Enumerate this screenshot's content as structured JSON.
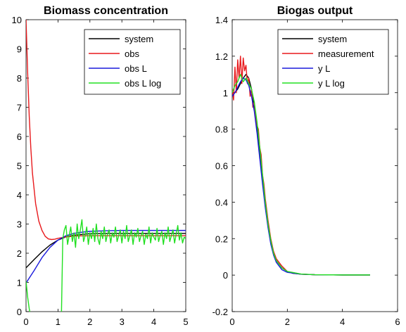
{
  "chart_data": [
    {
      "type": "line",
      "title": "Biomass concentration",
      "xlabel": "",
      "ylabel": "",
      "xlim": [
        0,
        5
      ],
      "ylim": [
        0,
        10
      ],
      "xticks": [
        0,
        1,
        2,
        3,
        4,
        5
      ],
      "yticks": [
        0,
        1,
        2,
        3,
        4,
        5,
        6,
        7,
        8,
        9,
        10
      ],
      "xtick_labels": [
        "0",
        "1",
        "2",
        "3",
        "4",
        "5"
      ],
      "ytick_labels": [
        "0",
        "1",
        "2",
        "3",
        "4",
        "5",
        "6",
        "7",
        "8",
        "9",
        "10"
      ],
      "grid": false,
      "legend_position": "top-right",
      "series": [
        {
          "name": "system",
          "color": "#000000",
          "x": [
            0,
            0.25,
            0.5,
            0.75,
            1.0,
            1.25,
            1.5,
            2.0,
            2.5,
            3.0,
            4.0,
            5.0
          ],
          "y": [
            1.5,
            1.78,
            2.05,
            2.28,
            2.45,
            2.56,
            2.62,
            2.67,
            2.68,
            2.68,
            2.68,
            2.68
          ]
        },
        {
          "name": "obs",
          "color": "#e8191c",
          "x": [
            0,
            0.05,
            0.1,
            0.15,
            0.2,
            0.3,
            0.4,
            0.5,
            0.6,
            0.7,
            0.8,
            0.9,
            1.0,
            1.2,
            1.5,
            2.0,
            3.0,
            4.0,
            5.0
          ],
          "y": [
            10.0,
            8.2,
            6.7,
            5.6,
            4.75,
            3.7,
            3.1,
            2.78,
            2.58,
            2.49,
            2.47,
            2.48,
            2.51,
            2.55,
            2.59,
            2.6,
            2.6,
            2.6,
            2.6
          ]
        },
        {
          "name": "obs L",
          "color": "#1a1adc",
          "x": [
            0,
            0.25,
            0.5,
            0.75,
            1.0,
            1.25,
            1.5,
            1.75,
            2.0,
            2.5,
            3.0,
            4.0,
            5.0
          ],
          "y": [
            0.98,
            1.4,
            1.85,
            2.2,
            2.45,
            2.6,
            2.68,
            2.72,
            2.75,
            2.77,
            2.78,
            2.78,
            2.78
          ]
        },
        {
          "name": "obs L log",
          "color": "#22e022",
          "x": [
            0,
            0.05,
            0.1,
            0.15,
            1.1,
            1.11,
            1.15,
            1.2,
            1.25,
            1.3,
            1.35,
            1.4,
            1.45,
            1.5,
            1.55,
            1.6,
            1.65,
            1.7,
            1.75,
            1.8,
            1.85,
            1.9,
            1.95,
            2.0,
            2.05,
            2.1,
            2.15,
            2.2,
            2.25,
            2.3,
            2.35,
            2.4,
            2.45,
            2.5,
            2.55,
            2.6,
            2.65,
            2.7,
            2.75,
            2.8,
            2.85,
            2.9,
            2.95,
            3.0,
            3.05,
            3.1,
            3.15,
            3.2,
            3.25,
            3.3,
            3.35,
            3.4,
            3.45,
            3.5,
            3.55,
            3.6,
            3.65,
            3.7,
            3.75,
            3.8,
            3.85,
            3.9,
            3.95,
            4.0,
            4.05,
            4.1,
            4.15,
            4.2,
            4.25,
            4.3,
            4.35,
            4.4,
            4.45,
            4.5,
            4.55,
            4.6,
            4.65,
            4.7,
            4.75,
            4.8,
            4.85,
            4.9,
            4.95,
            5.0
          ],
          "y": [
            1.05,
            0.5,
            0.1,
            -0.2,
            -0.2,
            0.0,
            2.5,
            2.8,
            2.95,
            2.3,
            2.6,
            2.9,
            2.4,
            2.7,
            2.2,
            3.0,
            2.5,
            2.8,
            3.15,
            2.4,
            2.6,
            2.9,
            2.3,
            2.7,
            2.5,
            2.85,
            2.4,
            3.0,
            2.5,
            2.3,
            2.75,
            2.5,
            2.9,
            2.4,
            2.65,
            2.8,
            2.35,
            2.7,
            2.55,
            2.9,
            2.4,
            2.6,
            2.8,
            2.35,
            2.75,
            2.5,
            2.95,
            2.4,
            2.6,
            2.8,
            2.3,
            2.7,
            2.55,
            2.85,
            2.4,
            2.6,
            2.75,
            2.3,
            2.65,
            2.5,
            2.9,
            2.35,
            2.7,
            2.55,
            2.45,
            2.85,
            2.4,
            2.6,
            2.75,
            2.3,
            2.7,
            2.5,
            2.9,
            2.4,
            2.6,
            2.8,
            2.35,
            2.65,
            2.95,
            2.45,
            2.7,
            2.35,
            2.55,
            2.5
          ]
        }
      ]
    },
    {
      "type": "line",
      "title": "Biogas output",
      "xlabel": "",
      "ylabel": "",
      "xlim": [
        0,
        6
      ],
      "ylim": [
        -0.2,
        1.4
      ],
      "xticks": [
        0,
        2,
        4,
        6
      ],
      "yticks": [
        -0.2,
        0,
        0.2,
        0.4,
        0.6,
        0.8,
        1,
        1.2,
        1.4
      ],
      "xtick_labels": [
        "0",
        "2",
        "4",
        "6"
      ],
      "ytick_labels": [
        "-0.2",
        "0",
        "0.2",
        "0.4",
        "0.6",
        "0.8",
        "1",
        "1.2",
        "1.4"
      ],
      "grid": false,
      "legend_position": "top-right",
      "series": [
        {
          "name": "system",
          "color": "#000000",
          "x": [
            0,
            0.1,
            0.2,
            0.3,
            0.4,
            0.5,
            0.6,
            0.7,
            0.8,
            0.9,
            1.0,
            1.1,
            1.2,
            1.3,
            1.4,
            1.5,
            1.6,
            1.8,
            2.0,
            2.2,
            2.5,
            3.0,
            4.0,
            5.0
          ],
          "y": [
            1.0,
            1.0,
            1.02,
            1.05,
            1.08,
            1.1,
            1.08,
            1.02,
            0.92,
            0.8,
            0.66,
            0.52,
            0.38,
            0.27,
            0.18,
            0.12,
            0.08,
            0.04,
            0.02,
            0.01,
            0.005,
            0.002,
            0.001,
            0.001
          ]
        },
        {
          "name": "measurement",
          "color": "#e8191c",
          "x": [
            0,
            0.05,
            0.1,
            0.15,
            0.2,
            0.25,
            0.3,
            0.35,
            0.4,
            0.45,
            0.5,
            0.55,
            0.6,
            0.65,
            0.7,
            0.75,
            0.8,
            0.85,
            0.9,
            0.95,
            1.0,
            1.05,
            1.1,
            1.15,
            1.2,
            1.3,
            1.4,
            1.5,
            1.6,
            1.8,
            2.0,
            2.5,
            3.0,
            4.0,
            5.0
          ],
          "y": [
            1.02,
            0.96,
            1.14,
            1.0,
            1.18,
            1.08,
            1.2,
            1.05,
            1.19,
            1.12,
            1.15,
            1.05,
            1.08,
            0.98,
            1.02,
            0.92,
            0.95,
            0.86,
            0.82,
            0.8,
            0.7,
            0.66,
            0.55,
            0.5,
            0.42,
            0.3,
            0.2,
            0.13,
            0.09,
            0.05,
            0.02,
            0.005,
            0.002,
            0.001,
            0.001
          ]
        },
        {
          "name": "y L",
          "color": "#1a1adc",
          "x": [
            0,
            0.1,
            0.2,
            0.3,
            0.4,
            0.5,
            0.6,
            0.7,
            0.8,
            0.9,
            1.0,
            1.1,
            1.2,
            1.3,
            1.4,
            1.5,
            1.6,
            1.8,
            2.0,
            2.5,
            3.0,
            4.0,
            5.0
          ],
          "y": [
            0.98,
            1.0,
            1.03,
            1.06,
            1.08,
            1.07,
            1.04,
            0.98,
            0.9,
            0.78,
            0.64,
            0.5,
            0.37,
            0.26,
            0.17,
            0.11,
            0.07,
            0.03,
            0.015,
            0.005,
            0.002,
            0.001,
            0.001
          ]
        },
        {
          "name": "y L log",
          "color": "#22e022",
          "x": [
            0,
            0.1,
            0.2,
            0.3,
            0.4,
            0.5,
            0.6,
            0.7,
            0.8,
            0.9,
            1.0,
            1.1,
            1.2,
            1.3,
            1.4,
            1.5,
            1.6,
            1.8,
            2.0,
            2.5,
            3.0,
            4.0,
            5.0
          ],
          "y": [
            1.0,
            1.04,
            1.06,
            1.1,
            1.06,
            1.08,
            1.05,
            1.02,
            0.95,
            0.84,
            0.7,
            0.55,
            0.4,
            0.28,
            0.19,
            0.12,
            0.08,
            0.04,
            0.02,
            0.006,
            0.002,
            0.001,
            0.001
          ]
        }
      ]
    }
  ]
}
